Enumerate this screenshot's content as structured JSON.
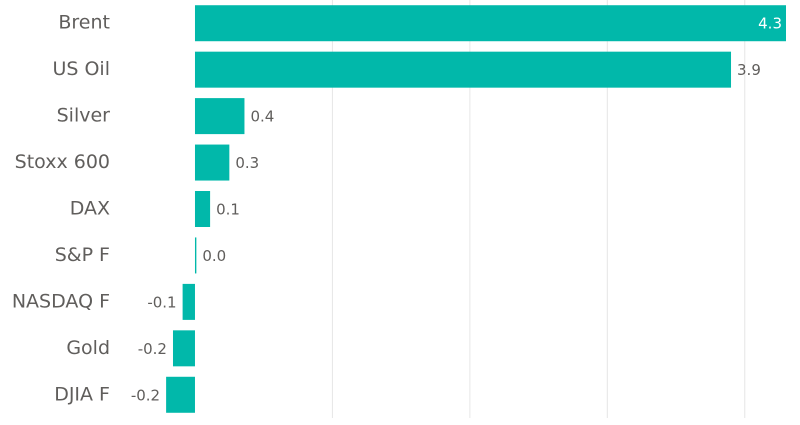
{
  "chart_data": {
    "type": "hbar",
    "categories": [
      "Brent",
      "US Oil",
      "Silver",
      "Stoxx 600",
      "DAX",
      "S&P F",
      "NASDAQ F",
      "Gold",
      "DJIA F"
    ],
    "values": [
      4.3,
      3.9,
      0.36,
      0.25,
      0.11,
      0.01,
      -0.09,
      -0.16,
      -0.21
    ],
    "value_labels": [
      "4.3",
      "3.9",
      "0.4",
      "0.3",
      "0.1",
      "0.0",
      "-0.1",
      "-0.2",
      "-0.2"
    ],
    "color": "#01b8aa",
    "xlim": [
      -0.4,
      4.3
    ],
    "xticks": [
      1,
      2,
      3,
      4
    ],
    "grid": true
  }
}
